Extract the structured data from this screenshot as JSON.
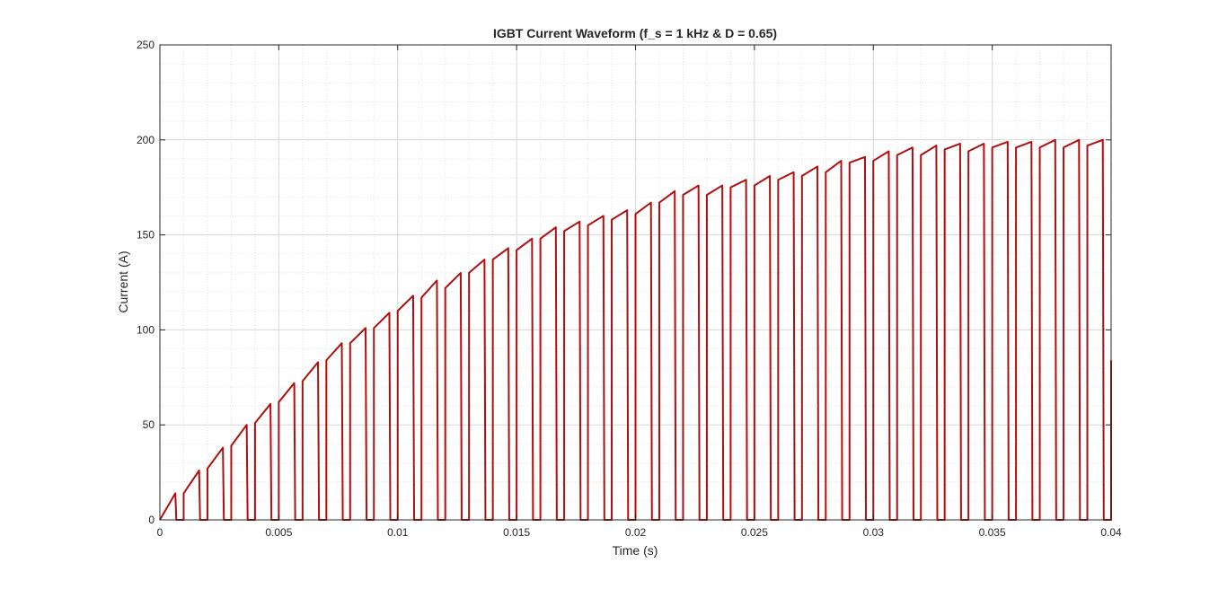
{
  "chart_data": {
    "type": "line",
    "title": "IGBT Current Waveform (f_s = 1 kHz & D = 0.65)",
    "xlabel": "Time (s)",
    "ylabel": "Current (A)",
    "xlim": [
      0,
      0.04
    ],
    "ylim": [
      0,
      250
    ],
    "xticks": [
      0,
      0.005,
      0.01,
      0.015,
      0.02,
      0.025,
      0.03,
      0.035,
      0.04
    ],
    "xtick_labels": [
      "0",
      "0.005",
      "0.01",
      "0.015",
      "0.02",
      "0.025",
      "0.03",
      "0.035",
      "0.04"
    ],
    "yticks": [
      0,
      50,
      100,
      150,
      200,
      250
    ],
    "ytick_labels": [
      "0",
      "50",
      "100",
      "150",
      "200",
      "250"
    ],
    "grid": true,
    "minor_grid": true,
    "series": [
      {
        "color": "#b00f0f",
        "switching_period": 0.001,
        "duty_cycle": 0.65,
        "pulses": [
          {
            "t_on": 0.0,
            "i_start": 0,
            "i_peak": 14
          },
          {
            "t_on": 0.001,
            "i_start": 14,
            "i_peak": 26
          },
          {
            "t_on": 0.002,
            "i_start": 27,
            "i_peak": 38
          },
          {
            "t_on": 0.003,
            "i_start": 39,
            "i_peak": 50
          },
          {
            "t_on": 0.004,
            "i_start": 51,
            "i_peak": 61
          },
          {
            "t_on": 0.005,
            "i_start": 62,
            "i_peak": 72
          },
          {
            "t_on": 0.006,
            "i_start": 73,
            "i_peak": 83
          },
          {
            "t_on": 0.007,
            "i_start": 84,
            "i_peak": 93
          },
          {
            "t_on": 0.008,
            "i_start": 93,
            "i_peak": 101
          },
          {
            "t_on": 0.009,
            "i_start": 101,
            "i_peak": 109
          },
          {
            "t_on": 0.01,
            "i_start": 110,
            "i_peak": 118
          },
          {
            "t_on": 0.011,
            "i_start": 117,
            "i_peak": 126
          },
          {
            "t_on": 0.012,
            "i_start": 122,
            "i_peak": 130
          },
          {
            "t_on": 0.013,
            "i_start": 130,
            "i_peak": 137
          },
          {
            "t_on": 0.014,
            "i_start": 137,
            "i_peak": 143
          },
          {
            "t_on": 0.015,
            "i_start": 142,
            "i_peak": 148
          },
          {
            "t_on": 0.016,
            "i_start": 148,
            "i_peak": 154
          },
          {
            "t_on": 0.017,
            "i_start": 152,
            "i_peak": 157
          },
          {
            "t_on": 0.018,
            "i_start": 155,
            "i_peak": 160
          },
          {
            "t_on": 0.019,
            "i_start": 158,
            "i_peak": 163
          },
          {
            "t_on": 0.02,
            "i_start": 161,
            "i_peak": 167
          },
          {
            "t_on": 0.021,
            "i_start": 167,
            "i_peak": 173
          },
          {
            "t_on": 0.022,
            "i_start": 171,
            "i_peak": 176
          },
          {
            "t_on": 0.023,
            "i_start": 171,
            "i_peak": 176
          },
          {
            "t_on": 0.024,
            "i_start": 175,
            "i_peak": 179
          },
          {
            "t_on": 0.025,
            "i_start": 176,
            "i_peak": 181
          },
          {
            "t_on": 0.026,
            "i_start": 179,
            "i_peak": 183
          },
          {
            "t_on": 0.027,
            "i_start": 181,
            "i_peak": 186
          },
          {
            "t_on": 0.028,
            "i_start": 183,
            "i_peak": 189
          },
          {
            "t_on": 0.029,
            "i_start": 188,
            "i_peak": 191
          },
          {
            "t_on": 0.03,
            "i_start": 189,
            "i_peak": 194
          },
          {
            "t_on": 0.031,
            "i_start": 192,
            "i_peak": 196
          },
          {
            "t_on": 0.032,
            "i_start": 192,
            "i_peak": 197
          },
          {
            "t_on": 0.033,
            "i_start": 195,
            "i_peak": 198
          },
          {
            "t_on": 0.034,
            "i_start": 194,
            "i_peak": 198
          },
          {
            "t_on": 0.035,
            "i_start": 196,
            "i_peak": 199
          },
          {
            "t_on": 0.036,
            "i_start": 196,
            "i_peak": 199
          },
          {
            "t_on": 0.037,
            "i_start": 196,
            "i_peak": 200
          },
          {
            "t_on": 0.038,
            "i_start": 196,
            "i_peak": 200
          },
          {
            "t_on": 0.039,
            "i_start": 197,
            "i_peak": 200
          },
          {
            "t_on": 0.04,
            "i_start": 0,
            "i_peak": 84
          }
        ]
      }
    ]
  }
}
